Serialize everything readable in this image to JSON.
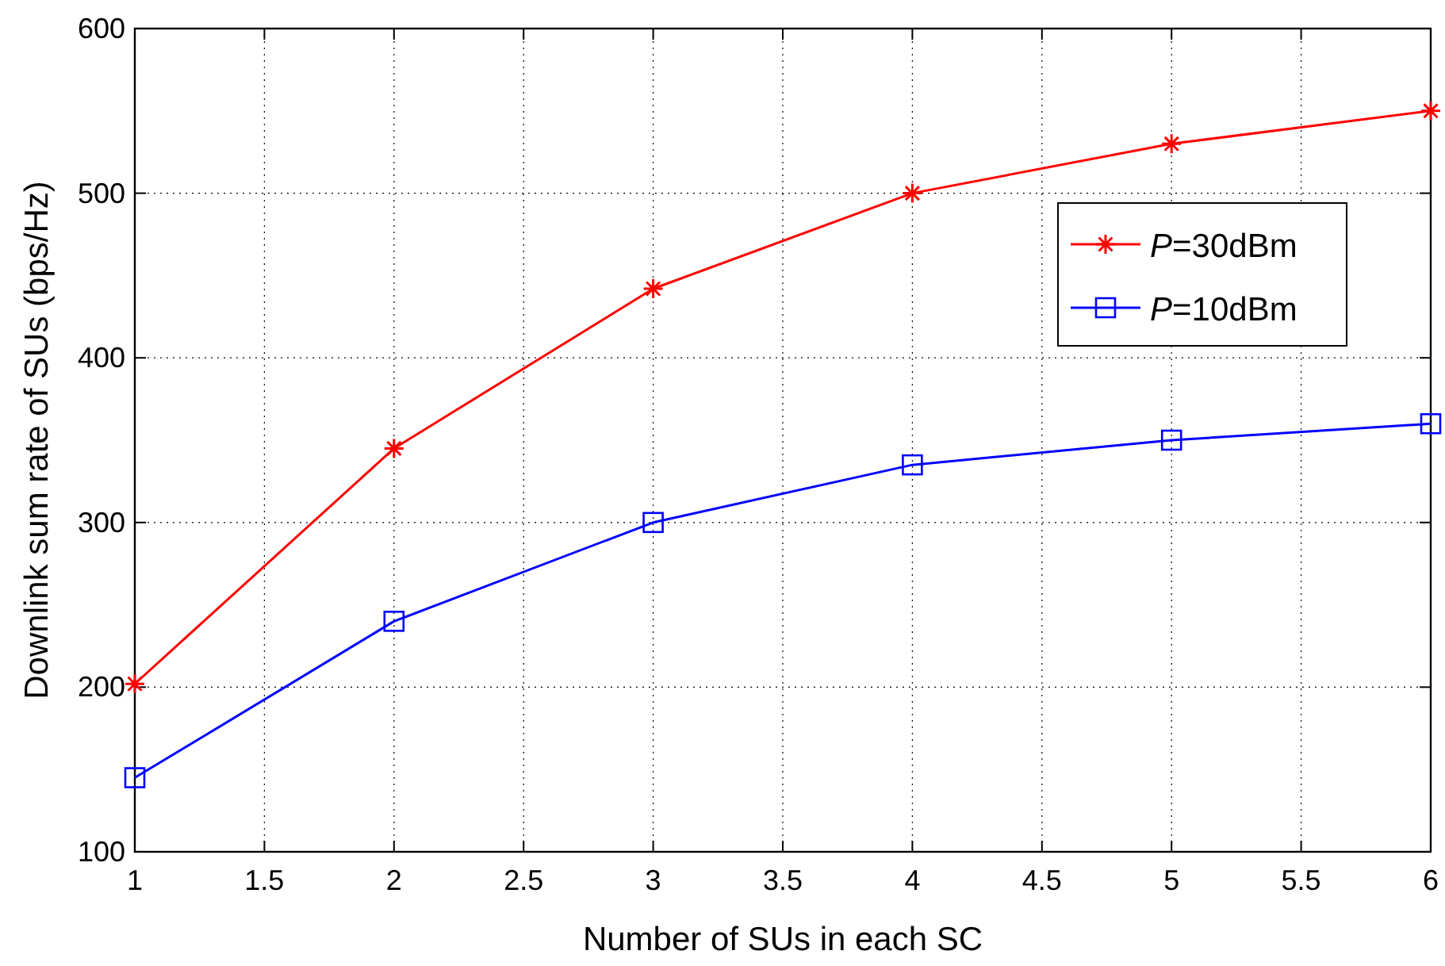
{
  "chart_data": {
    "type": "line",
    "xlabel": "Number of SUs in each SC",
    "ylabel": "Downlink sum rate of SUs (bps/Hz)",
    "x": [
      1,
      2,
      3,
      4,
      5,
      6
    ],
    "series": [
      {
        "name": "P=30dBm",
        "color": "#ff0000",
        "marker": "cross",
        "values": [
          202,
          345,
          442,
          500,
          530,
          550
        ]
      },
      {
        "name": "P=10dBm",
        "color": "#0000ff",
        "marker": "square",
        "values": [
          145,
          240,
          300,
          335,
          350,
          360
        ]
      }
    ],
    "xlim": [
      1,
      6
    ],
    "xticks": [
      1,
      1.5,
      2,
      2.5,
      3,
      3.5,
      4,
      4.5,
      5,
      5.5,
      6
    ],
    "ylim": [
      100,
      600
    ],
    "yticks": [
      100,
      200,
      300,
      400,
      500,
      600
    ],
    "grid": true,
    "legend": "top right",
    "line_style": "solid"
  }
}
